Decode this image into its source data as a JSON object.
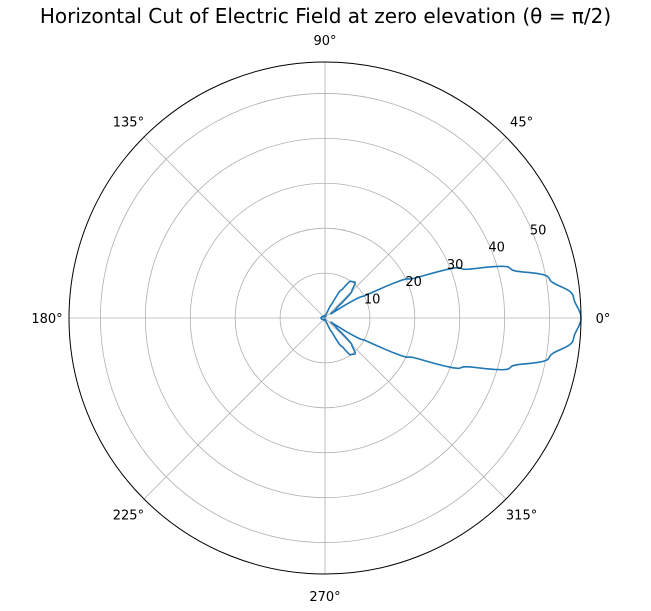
{
  "chart_data": {
    "type": "line",
    "projection": "polar",
    "title": "Horizontal Cut of Electric Field at zero elevation (θ = π/2)",
    "angle_ticks": [
      "0°",
      "45°",
      "90°",
      "135°",
      "180°",
      "225°",
      "270°",
      "315°"
    ],
    "angle_tick_degrees": [
      0,
      45,
      90,
      135,
      180,
      225,
      270,
      315
    ],
    "radial_ticks": [
      10,
      20,
      30,
      40,
      50
    ],
    "radial_tick_labels": [
      "10",
      "20",
      "30",
      "40",
      "50"
    ],
    "rlim": [
      0,
      57
    ],
    "grid": true,
    "series": [
      {
        "color": "#1f77b4",
        "theta_deg": [
          0,
          5,
          10,
          15,
          20,
          25,
          30,
          35,
          40,
          45,
          50,
          55,
          60,
          65,
          70,
          75,
          80,
          85,
          90,
          95,
          100,
          110,
          120,
          135,
          150,
          165,
          180,
          195,
          210,
          225,
          240,
          250,
          260,
          265,
          270,
          275,
          280,
          285,
          290,
          295,
          300,
          305,
          310,
          315,
          320,
          325,
          330,
          335,
          340,
          345,
          350,
          355,
          360
        ],
        "r": [
          57,
          55.5,
          50.7,
          42.7,
          32.3,
          20.6,
          9.6,
          1.6,
          3.3,
          8.5,
          10.4,
          10.0,
          7.2,
          3.2,
          1.2,
          0.5,
          0.4,
          0.3,
          0.3,
          0.3,
          0.4,
          0.6,
          0.5,
          0.4,
          0.6,
          0.8,
          0.9,
          0.8,
          0.6,
          0.4,
          0.5,
          0.6,
          0.4,
          0.3,
          0.3,
          0.3,
          0.4,
          0.5,
          1.2,
          3.2,
          7.2,
          10.0,
          10.4,
          8.5,
          3.3,
          1.6,
          9.6,
          20.6,
          32.3,
          42.7,
          50.7,
          55.5,
          57
        ]
      }
    ]
  }
}
